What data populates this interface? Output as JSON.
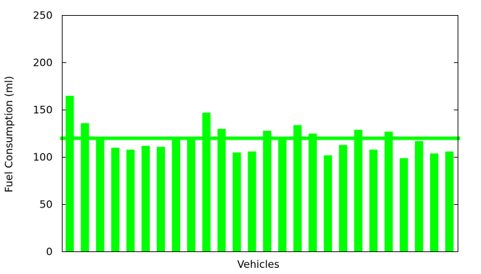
{
  "chart_data": {
    "type": "bar",
    "xlabel": "Vehicles",
    "ylabel": "Fuel Consumption (ml)",
    "ylim": [
      0,
      250
    ],
    "yticks": [
      "0",
      "50",
      "100",
      "150",
      "200",
      "250"
    ],
    "values": [
      165,
      136,
      120,
      110,
      108,
      112,
      111,
      120,
      119,
      147,
      130,
      105,
      106,
      128,
      120,
      134,
      125,
      102,
      113,
      129,
      108,
      127,
      99,
      117,
      104,
      106
    ],
    "reference_line": 120,
    "bar_color": "#00ff00",
    "line_color": "#00ff00",
    "grid": false
  }
}
